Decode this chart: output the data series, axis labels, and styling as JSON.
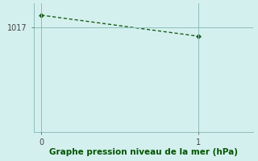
{
  "x": [
    0,
    1
  ],
  "y": [
    1017.8,
    1016.4
  ],
  "xlim": [
    -0.05,
    1.35
  ],
  "ylim": [
    1010.0,
    1018.6
  ],
  "yticks": [
    1017
  ],
  "xticks": [
    0,
    1
  ],
  "line_color": "#1a5e1a",
  "marker_color": "#1a5e1a",
  "bg_color": "#d4f0ee",
  "grid_color": "#8abfb8",
  "xlabel": "Graphe pression niveau de la mer (hPa)",
  "xlabel_color": "#005500",
  "xlabel_fontsize": 7.5,
  "tick_fontsize": 7,
  "tick_color": "#444444",
  "line_width": 1.0,
  "marker_size": 3
}
